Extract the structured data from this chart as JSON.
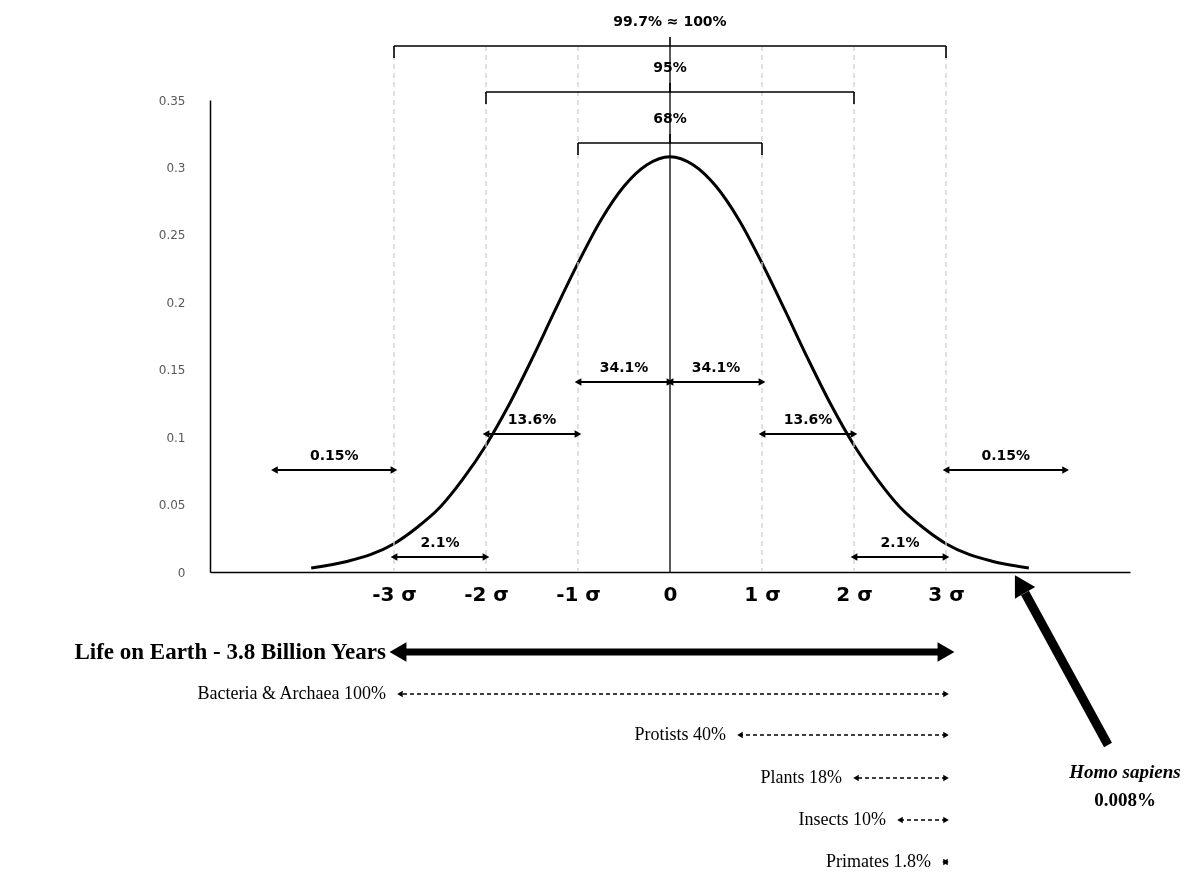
{
  "chart_data": {
    "type": "line",
    "x": [
      -3.9,
      -3.5,
      -3.25,
      -3,
      -2.75,
      -2.5,
      -2.25,
      -2,
      -1.75,
      -1.5,
      -1.25,
      -1,
      -0.75,
      -0.5,
      -0.25,
      0,
      0.25,
      0.5,
      0.75,
      1,
      1.25,
      1.5,
      1.75,
      2,
      2.25,
      2.5,
      2.75,
      3,
      3.25,
      3.5,
      3.9
    ],
    "series": [
      {
        "color": "#000000",
        "values": [
          0.003,
          0.008,
          0.013,
          0.021,
          0.033,
          0.048,
          0.069,
          0.094,
          0.124,
          0.158,
          0.194,
          0.229,
          0.261,
          0.286,
          0.302,
          0.308,
          0.302,
          0.286,
          0.261,
          0.229,
          0.194,
          0.158,
          0.124,
          0.094,
          0.069,
          0.048,
          0.033,
          0.021,
          0.013,
          0.008,
          0.003
        ]
      }
    ],
    "xlim": [
      -5,
      5
    ],
    "xticks": [
      {
        "value": -3,
        "label": "-3 σ"
      },
      {
        "value": -2,
        "label": "-2 σ"
      },
      {
        "value": -1,
        "label": "-1 σ"
      },
      0,
      {
        "value": 1,
        "label": "1 σ"
      },
      {
        "value": 2,
        "label": "2 σ"
      },
      {
        "value": 3,
        "label": "3 σ"
      }
    ],
    "ylim": [
      0,
      0.35
    ],
    "yticks": [
      0,
      0.05,
      0.1,
      0.15,
      0.2,
      0.25,
      0.3,
      0.35
    ],
    "grid": false,
    "line_style": "solid",
    "ref_lines": [
      {
        "axis": "x",
        "value": -3,
        "color": "#d0d0d0",
        "line_style": "dashed"
      },
      {
        "axis": "x",
        "value": -2,
        "color": "#d0d0d0",
        "line_style": "dashed"
      },
      {
        "axis": "x",
        "value": -1,
        "color": "#d0d0d0",
        "line_style": "dashed"
      },
      {
        "axis": "x",
        "value": 0,
        "color": "#000000",
        "line_style": "solid"
      },
      {
        "axis": "x",
        "value": 1,
        "color": "#d0d0d0",
        "line_style": "dashed"
      },
      {
        "axis": "x",
        "value": 2,
        "color": "#d0d0d0",
        "line_style": "dashed"
      },
      {
        "axis": "x",
        "value": 3,
        "color": "#d0d0d0",
        "line_style": "dashed"
      }
    ],
    "annotations": [
      "34.1%",
      "34.1%",
      "13.6%",
      "13.6%",
      "2.1%",
      "2.1%",
      "0.15%",
      "0.15%",
      "Homo sapiens\n0.008%",
      "68%",
      "95%",
      "99.7% ≈ 100%",
      "Life on Earth - 3.8 Billion Years",
      "Bacteria & Archaea 100%",
      "Protists 40%",
      "Plants 18%",
      "Insects 10%",
      "Primates 1.8%"
    ]
  }
}
